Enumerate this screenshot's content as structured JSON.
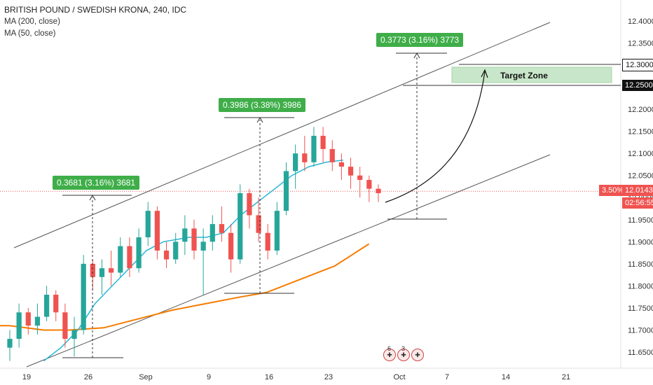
{
  "legend": {
    "title": "BRITISH POUND / SWEDISH KRONA, 240, IDC",
    "ma200": "MA (200, close)",
    "ma50": "MA (50, close)"
  },
  "colors": {
    "bull": "#26a69a",
    "bear": "#ef5350",
    "ma50": "#29b6d6",
    "ma200": "#f57c00",
    "channel": "#555555",
    "label_bg": "#3fae49",
    "zone_fill": "#c8e6c9",
    "current_price": "#ef5350"
  },
  "annotations": {
    "measure_labels": [
      "0.3681 (3.16%) 3681",
      "0.3986 (3.38%) 3986",
      "0.3773 (3.16%) 3773"
    ],
    "target_zone": "Target Zone"
  },
  "price_tags": {
    "level_high": "12.3000",
    "level_low": "12.2500",
    "current_pct": "3.50%",
    "current_price": "12.0143",
    "countdown": "02:56:55"
  },
  "events": [
    {
      "icon": "uk-flag-icon",
      "count": "6"
    },
    {
      "icon": "uk-flag-icon",
      "count": "3"
    },
    {
      "icon": "uk-flag-icon",
      "count": ""
    }
  ],
  "chart_data": {
    "type": "candlestick",
    "title": "BRITISH POUND / SWEDISH KRONA, 240, IDC",
    "x_ticks": [
      "19",
      "26",
      "Sep",
      "9",
      "16",
      "23",
      "Oct",
      "7",
      "14",
      "21"
    ],
    "y_ticks": [
      "12.4000",
      "12.3500",
      "12.3000",
      "12.2500",
      "12.2000",
      "12.1500",
      "12.1000",
      "12.0500",
      "12.0000",
      "11.9500",
      "11.9000",
      "11.8500",
      "11.8000",
      "11.7500",
      "11.7000",
      "11.6500"
    ],
    "ylim": [
      11.62,
      12.43
    ],
    "grid": false,
    "current_price": 12.0143,
    "series_points": {
      "ma200": [
        [
          17,
          11.71
        ],
        [
          21,
          11.7
        ],
        [
          24,
          11.7
        ],
        [
          28,
          11.705
        ],
        [
          32,
          11.725
        ],
        [
          36,
          11.745
        ],
        [
          40,
          11.76
        ],
        [
          44,
          11.775
        ],
        [
          47,
          11.785
        ],
        [
          51,
          11.815
        ],
        [
          55,
          11.845
        ],
        [
          57,
          11.87
        ],
        [
          59,
          11.895
        ]
      ],
      "ma50": [
        [
          21,
          11.63
        ],
        [
          23,
          11.66
        ],
        [
          25,
          11.7
        ],
        [
          27,
          11.76
        ],
        [
          29,
          11.8
        ],
        [
          31,
          11.84
        ],
        [
          33,
          11.88
        ],
        [
          35,
          11.9
        ],
        [
          38,
          11.91
        ],
        [
          40,
          11.91
        ],
        [
          42,
          11.92
        ],
        [
          44,
          11.96
        ],
        [
          46,
          11.99
        ],
        [
          48,
          12.02
        ],
        [
          50,
          12.05
        ],
        [
          52,
          12.07
        ],
        [
          54,
          12.08
        ],
        [
          56,
          12.085
        ]
      ]
    },
    "candles_ohlc": [
      [
        11.66,
        11.7,
        11.63,
        11.68
      ],
      [
        11.68,
        11.76,
        11.66,
        11.74
      ],
      [
        11.74,
        11.75,
        11.69,
        11.71
      ],
      [
        11.71,
        11.76,
        11.69,
        11.73
      ],
      [
        11.73,
        11.8,
        11.72,
        11.78
      ],
      [
        11.78,
        11.79,
        11.72,
        11.74
      ],
      [
        11.74,
        11.76,
        11.66,
        11.68
      ],
      [
        11.68,
        11.73,
        11.64,
        11.7
      ],
      [
        11.7,
        11.87,
        11.69,
        11.85
      ],
      [
        11.85,
        11.86,
        11.79,
        11.82
      ],
      [
        11.82,
        11.86,
        11.78,
        11.84
      ],
      [
        11.84,
        11.88,
        11.8,
        11.83
      ],
      [
        11.83,
        11.91,
        11.82,
        11.89
      ],
      [
        11.89,
        11.91,
        11.82,
        11.84
      ],
      [
        11.84,
        11.93,
        11.83,
        11.91
      ],
      [
        11.91,
        11.99,
        11.89,
        11.97
      ],
      [
        11.97,
        11.98,
        11.86,
        11.88
      ],
      [
        11.88,
        11.9,
        11.84,
        11.86
      ],
      [
        11.86,
        11.92,
        11.85,
        11.9
      ],
      [
        11.9,
        11.96,
        11.87,
        11.93
      ],
      [
        11.93,
        11.95,
        11.86,
        11.88
      ],
      [
        11.88,
        11.93,
        11.78,
        11.9
      ],
      [
        11.9,
        11.96,
        11.88,
        11.94
      ],
      [
        11.94,
        11.98,
        11.9,
        11.92
      ],
      [
        11.92,
        11.94,
        11.83,
        11.86
      ],
      [
        11.86,
        12.03,
        11.85,
        12.01
      ],
      [
        12.01,
        12.02,
        11.93,
        11.96
      ],
      [
        11.96,
        12.0,
        11.9,
        11.92
      ],
      [
        11.92,
        11.94,
        11.86,
        11.88
      ],
      [
        11.88,
        11.99,
        11.87,
        11.97
      ],
      [
        11.97,
        12.08,
        11.96,
        12.06
      ],
      [
        12.06,
        12.12,
        12.02,
        12.1
      ],
      [
        12.1,
        12.14,
        12.06,
        12.08
      ],
      [
        12.08,
        12.16,
        12.07,
        12.14
      ],
      [
        12.14,
        12.16,
        12.08,
        12.11
      ],
      [
        12.11,
        12.13,
        12.06,
        12.08
      ],
      [
        12.08,
        12.1,
        12.04,
        12.07
      ],
      [
        12.07,
        12.09,
        12.02,
        12.05
      ],
      [
        12.05,
        12.07,
        12.0,
        12.04
      ],
      [
        12.04,
        12.05,
        11.99,
        12.02
      ],
      [
        12.02,
        12.03,
        11.99,
        12.01
      ]
    ],
    "annotations": [
      {
        "label": "0.3681 (3.16%) 3681",
        "from": 11.636,
        "to": 12.0
      }
    ]
  }
}
